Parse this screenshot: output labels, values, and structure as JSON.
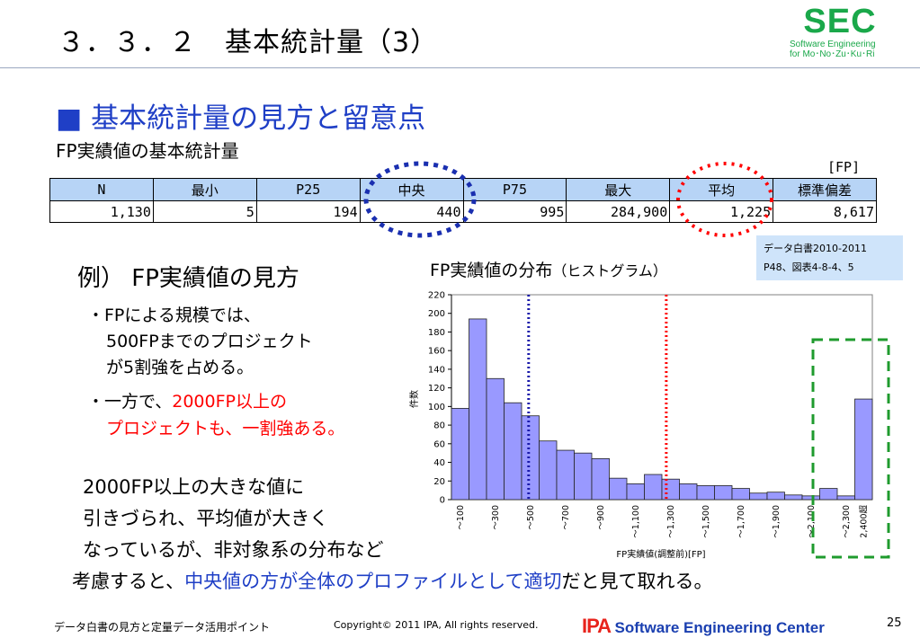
{
  "header": {
    "title": "３．３．２　基本統計量（3）",
    "logo_word": "SEC",
    "logo_line1": "Software Engineering",
    "logo_line2": "for Mo･No･Zu･Ku･Ri"
  },
  "heading": "■ 基本統計量の見方と留意点",
  "table_caption": "FP実績値の基本統計量",
  "unit": "[FP]",
  "stats": {
    "headers": [
      "N",
      "最小",
      "P25",
      "中央",
      "P75",
      "最大",
      "平均",
      "標準偏差"
    ],
    "values": [
      "1,130",
      "5",
      "194",
      "440",
      "995",
      "284,900",
      "1,225",
      "8,617"
    ]
  },
  "source_note": {
    "line1": "データ白書2010-2011",
    "line2": "P48、図表4-8-4、5"
  },
  "example": {
    "title": "例）  FP実績値の見方",
    "b1_l1": "・FPによる規模では、",
    "b1_l2": "500FPまでのプロジェクト",
    "b1_l3": "が5割強を占める。",
    "b2_prefix": "・一方で、",
    "b2_red1": "2000FP以上の",
    "b2_red2": "プロジェクトも、一割強ある。"
  },
  "conclusion": {
    "l1": "2000FP以上の大きな値に",
    "l2": "引きづられ、平均値が大きく",
    "l3": "なっているが、非対象系の分布など",
    "l4_prefix": "考慮すると、",
    "l4_blue": "中央値の方が全体のプロファイルとして適切",
    "l4_suffix": "だと見て取れる。"
  },
  "chart_data": {
    "type": "bar",
    "title": "FP実績値の分布",
    "title_suffix": "（ヒストグラム）",
    "xlabel": "FP実績値(調整前)[FP]",
    "ylabel": "件数",
    "ylim": [
      0,
      220
    ],
    "yticks": [
      0,
      20,
      40,
      60,
      80,
      100,
      120,
      140,
      160,
      180,
      200,
      220
    ],
    "x_tick_labels": [
      "～100",
      "～300",
      "～500",
      "～700",
      "～900",
      "～1,100",
      "～1,300",
      "～1,500",
      "～1,700",
      "～1,900",
      "～2,100",
      "～2,300",
      "2,400超"
    ],
    "values": [
      98,
      194,
      130,
      104,
      90,
      63,
      53,
      50,
      44,
      23,
      17,
      27,
      22,
      17,
      15,
      15,
      12,
      7,
      8,
      5,
      4,
      12,
      4,
      108
    ],
    "reference_lines": [
      {
        "x": 440,
        "color": "#1a1aaa",
        "style": "dotted"
      },
      {
        "x": 1225,
        "color": "#ff0000",
        "style": "dotted"
      }
    ],
    "bar_color": "#9999ff"
  },
  "footer": {
    "left": "データ白書の見方と定量データ活用ポイント",
    "copyright": "Copyright© 2011 IPA, All rights reserved.",
    "ipa_mark": "IPA",
    "ipa_text": "Software Engineering Center",
    "page": "25"
  },
  "colors": {
    "accent_green": "#1aa84a",
    "heading_blue": "#1f3fc6",
    "table_header_bg": "#b7d4f6",
    "highlight_red": "#ff0000"
  }
}
